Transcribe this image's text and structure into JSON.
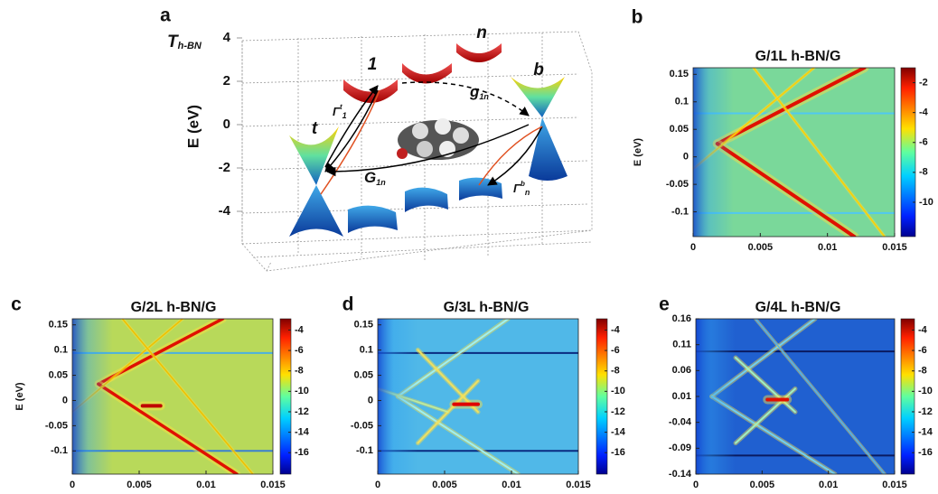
{
  "chart_data": [
    {
      "type": "schematic",
      "panel": "a",
      "title": "T",
      "title_sub": "h-BN",
      "ylabel": "E (eV)",
      "ylim": [
        -4,
        4
      ],
      "yticks": [
        4,
        2,
        0,
        -2,
        -4
      ],
      "labels": {
        "t": "t",
        "one": "1",
        "n": "n",
        "b": "b",
        "g": {
          "text": "g",
          "sub": "1n"
        },
        "G": {
          "text": "G",
          "sub": "1n"
        },
        "gamma_t": {
          "text": "Γ",
          "sup": "t",
          "sub": "1"
        },
        "gamma_b": {
          "text": "Γ",
          "sup": "b",
          "sub": "n"
        }
      }
    },
    {
      "type": "heatmap",
      "panel": "b",
      "title": "G/1L h-BN/G",
      "ylabel": "E (eV)",
      "xlim": [
        0,
        0.015
      ],
      "xticks": [
        0,
        0.005,
        0.01,
        0.015
      ],
      "ylim": [
        -0.145,
        0.162
      ],
      "yticks": [
        0.15,
        0.1,
        0.05,
        0,
        -0.05,
        -0.1
      ],
      "colorbar": {
        "clim": [
          -12.3,
          -1
        ],
        "ticks": [
          -2,
          -4,
          -6,
          -8,
          -10
        ]
      }
    },
    {
      "type": "heatmap",
      "panel": "c",
      "title": "G/2L h-BN/G",
      "ylabel": "E (eV)",
      "xlim": [
        0,
        0.015
      ],
      "xticks": [
        0,
        0.005,
        0.01,
        0.015
      ],
      "ylim": [
        -0.146,
        0.162
      ],
      "yticks": [
        0.15,
        0.1,
        0.05,
        0,
        -0.05,
        -0.1
      ],
      "colorbar": {
        "clim": [
          -18.1,
          -2.9
        ],
        "ticks": [
          -4,
          -6,
          -8,
          -10,
          -12,
          -14,
          -16
        ]
      }
    },
    {
      "type": "heatmap",
      "panel": "d",
      "title": "G/3L h-BN/G",
      "xlim": [
        0,
        0.015
      ],
      "xticks": [
        0,
        0.005,
        0.01,
        0.015
      ],
      "ylim": [
        -0.146,
        0.162
      ],
      "yticks": [
        0.15,
        0.1,
        0.05,
        0,
        -0.05,
        -0.1
      ],
      "colorbar": {
        "clim": [
          -18.1,
          -2.9
        ],
        "ticks": [
          -4,
          -6,
          -8,
          -10,
          -12,
          -14,
          -16
        ]
      }
    },
    {
      "type": "heatmap",
      "panel": "e",
      "title": "G/4L h-BN/G",
      "xlim": [
        0,
        0.015
      ],
      "xticks": [
        0,
        0.005,
        0.01,
        0.015
      ],
      "ylim": [
        -0.14,
        0.16
      ],
      "yticks": [
        0.16,
        0.11,
        0.06,
        0.01,
        -0.04,
        -0.09,
        -0.14
      ],
      "colorbar": {
        "clim": [
          -18.1,
          -2.9
        ],
        "ticks": [
          -4,
          -6,
          -8,
          -10,
          -12,
          -14,
          -16
        ]
      }
    }
  ]
}
